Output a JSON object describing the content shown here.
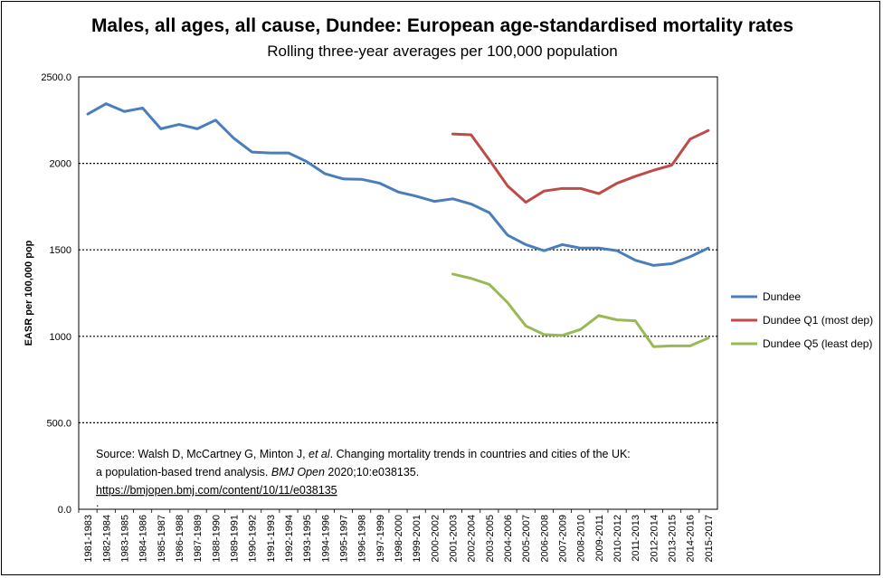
{
  "chart_data": {
    "type": "line",
    "title": "Males, all ages, all cause, Dundee: European age-standardised mortality rates",
    "subtitle": "Rolling three-year averages per 100,000 population",
    "ylabel": "EASR per 100,000 pop",
    "xlabel": "",
    "ylim": [
      0,
      2500
    ],
    "yticks": [
      "0.0",
      "500.0",
      "1000",
      "1500",
      "2000",
      "2500.0"
    ],
    "ytick_values": [
      0,
      500,
      1000,
      1500,
      2000,
      2500
    ],
    "grid": "horizontal dotted",
    "legend_position": "right",
    "categories": [
      "1981-1983",
      "1982-1984",
      "1983-1985",
      "1984-1986",
      "1985-1987",
      "1986-1988",
      "1987-1989",
      "1988-1990",
      "1989-1991",
      "1990-1992",
      "1991-1993",
      "1992-1994",
      "1993-1995",
      "1994-1996",
      "1995-1997",
      "1996-1998",
      "1997-1999",
      "1998-2000",
      "1999-2001",
      "2000-2002",
      "2001-2003",
      "2002-2004",
      "2003-2005",
      "2004-2006",
      "2005-2007",
      "2006-2008",
      "2007-2009",
      "2008-2010",
      "2009-2011",
      "2010-2012",
      "2011-2013",
      "2012-2014",
      "2013-2015",
      "2014-2016",
      "2015-2017"
    ],
    "series": [
      {
        "name": "Dundee",
        "color": "#4a7ebb",
        "values": [
          2285,
          2345,
          2300,
          2320,
          2200,
          2225,
          2200,
          2250,
          2145,
          2065,
          2060,
          2060,
          2010,
          1940,
          1910,
          1908,
          1885,
          1835,
          1810,
          1780,
          1795,
          1765,
          1715,
          1585,
          1530,
          1495,
          1530,
          1510,
          1510,
          1495,
          1440,
          1410,
          1420,
          1460,
          1510
        ]
      },
      {
        "name": "Dundee Q1 (most dep)",
        "color": "#be4b48",
        "values": [
          null,
          null,
          null,
          null,
          null,
          null,
          null,
          null,
          null,
          null,
          null,
          null,
          null,
          null,
          null,
          null,
          null,
          null,
          null,
          null,
          2170,
          2165,
          2020,
          1870,
          1775,
          1840,
          1855,
          1855,
          1825,
          1885,
          1925,
          1960,
          1990,
          2140,
          2190
        ]
      },
      {
        "name": "Dundee Q5 (least dep)",
        "color": "#98b954",
        "values": [
          null,
          null,
          null,
          null,
          null,
          null,
          null,
          null,
          null,
          null,
          null,
          null,
          null,
          null,
          null,
          null,
          null,
          null,
          null,
          null,
          1360,
          1335,
          1300,
          1195,
          1060,
          1010,
          1005,
          1040,
          1120,
          1095,
          1090,
          940,
          945,
          945,
          990
        ]
      }
    ]
  },
  "source": {
    "line1_pre": "Source: Walsh D, McCartney G, Minton J, ",
    "line1_italic": "et al",
    "line1_post": ". Changing mortality trends in countries and cities of the UK:",
    "line2_pre": "a population-based trend analysis. ",
    "line2_italic": "BMJ Open",
    "line2_post": " 2020;10:e038135.",
    "link": "https://bmjopen.bmj.com/content/10/11/e038135",
    "trailing": "."
  }
}
